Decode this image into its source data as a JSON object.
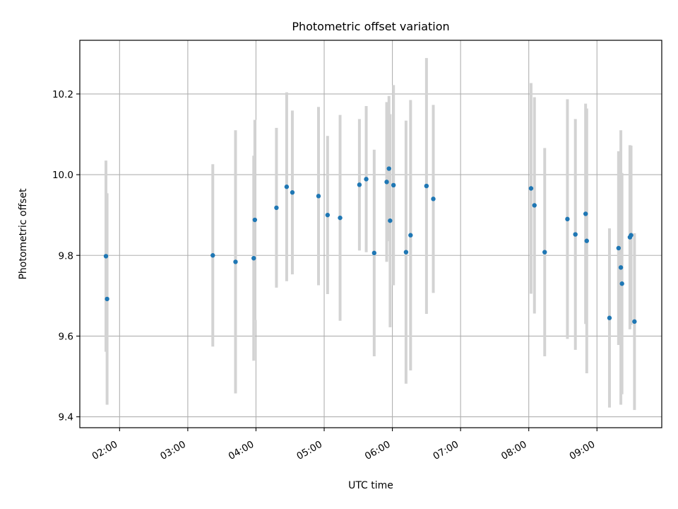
{
  "chart_data": {
    "type": "scatter",
    "title": "Photometric offset variation",
    "xlabel": "UTC time",
    "ylabel": "Photometric offset",
    "x_ticks": [
      "02:00",
      "03:00",
      "04:00",
      "05:00",
      "06:00",
      "07:00",
      "08:00",
      "09:00"
    ],
    "y_ticks": [
      "9.4",
      "9.6",
      "9.8",
      "10.0",
      "10.2"
    ],
    "xlim": [
      "01:25",
      "09:57"
    ],
    "ylim": [
      9.373,
      10.333
    ],
    "grid": true,
    "colors": {
      "point": "#1f77b4",
      "errorbar": "#d3d3d3",
      "grid": "#b0b0b0"
    },
    "points": [
      {
        "time": "01:48",
        "value": 9.798,
        "err": 0.237
      },
      {
        "time": "01:49",
        "value": 9.692,
        "err": 0.262
      },
      {
        "time": "03:22",
        "value": 9.8,
        "err": 0.226
      },
      {
        "time": "03:42",
        "value": 9.784,
        "err": 0.326
      },
      {
        "time": "03:58",
        "value": 9.793,
        "err": 0.254
      },
      {
        "time": "03:59",
        "value": 9.888,
        "err": 0.248
      },
      {
        "time": "04:18",
        "value": 9.918,
        "err": 0.198
      },
      {
        "time": "04:27",
        "value": 9.97,
        "err": 0.234
      },
      {
        "time": "04:32",
        "value": 9.956,
        "err": 0.203
      },
      {
        "time": "04:55",
        "value": 9.947,
        "err": 0.221
      },
      {
        "time": "05:03",
        "value": 9.9,
        "err": 0.196
      },
      {
        "time": "05:14",
        "value": 9.893,
        "err": 0.255
      },
      {
        "time": "05:31",
        "value": 9.975,
        "err": 0.163
      },
      {
        "time": "05:37",
        "value": 9.989,
        "err": 0.181
      },
      {
        "time": "05:44",
        "value": 9.806,
        "err": 0.256
      },
      {
        "time": "05:55",
        "value": 9.982,
        "err": 0.198
      },
      {
        "time": "05:57",
        "value": 10.015,
        "err": 0.18
      },
      {
        "time": "05:58",
        "value": 9.886,
        "err": 0.264
      },
      {
        "time": "06:01",
        "value": 9.974,
        "err": 0.248
      },
      {
        "time": "06:12",
        "value": 9.808,
        "err": 0.326
      },
      {
        "time": "06:16",
        "value": 9.85,
        "err": 0.335
      },
      {
        "time": "06:30",
        "value": 9.972,
        "err": 0.317
      },
      {
        "time": "06:36",
        "value": 9.94,
        "err": 0.233
      },
      {
        "time": "08:02",
        "value": 9.966,
        "err": 0.261
      },
      {
        "time": "08:05",
        "value": 9.924,
        "err": 0.268
      },
      {
        "time": "08:14",
        "value": 9.808,
        "err": 0.258
      },
      {
        "time": "08:34",
        "value": 9.89,
        "err": 0.297
      },
      {
        "time": "08:41",
        "value": 9.852,
        "err": 0.286
      },
      {
        "time": "08:50",
        "value": 9.903,
        "err": 0.273
      },
      {
        "time": "08:51",
        "value": 9.836,
        "err": 0.328
      },
      {
        "time": "09:11",
        "value": 9.645,
        "err": 0.222
      },
      {
        "time": "09:19",
        "value": 9.818,
        "err": 0.24
      },
      {
        "time": "09:21",
        "value": 9.77,
        "err": 0.34
      },
      {
        "time": "09:22",
        "value": 9.73,
        "err": 0.274
      },
      {
        "time": "09:29",
        "value": 9.845,
        "err": 0.228
      },
      {
        "time": "09:30",
        "value": 9.85,
        "err": 0.222
      },
      {
        "time": "09:33",
        "value": 9.636,
        "err": 0.219
      }
    ]
  }
}
